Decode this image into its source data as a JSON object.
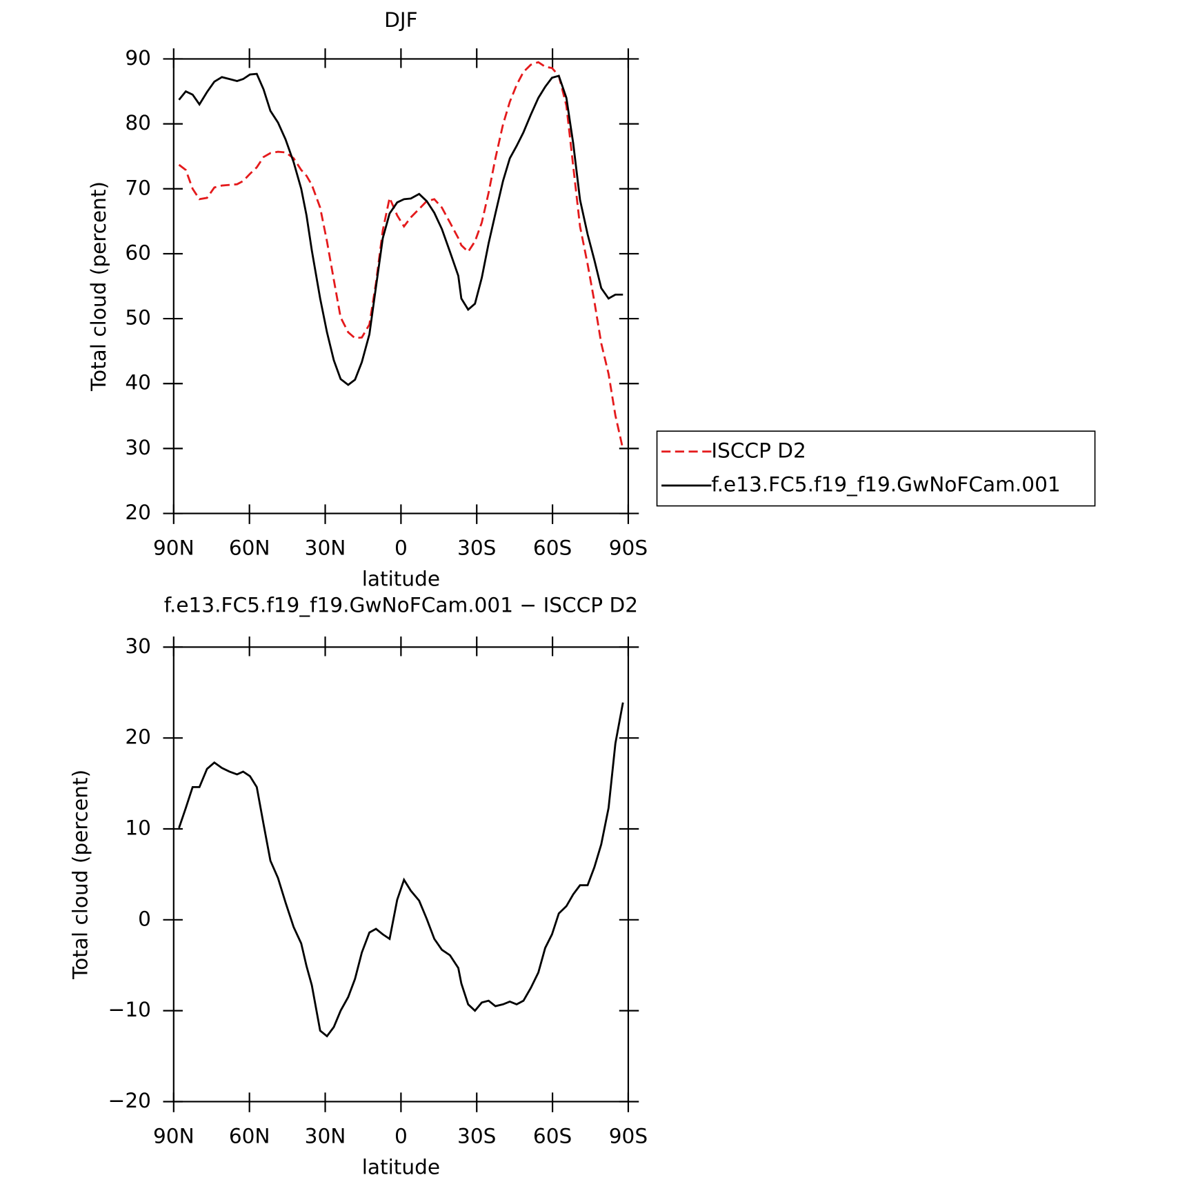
{
  "chart_data": [
    {
      "type": "line",
      "title": "DJF",
      "xlabel": "latitude",
      "ylabel": "Total cloud (percent)",
      "x": [
        87.9,
        85.2,
        82.5,
        79.8,
        76.8,
        73.9,
        70.9,
        67.9,
        64.9,
        62.5,
        59.8,
        57.1,
        54.4,
        51.7,
        48.7,
        45.7,
        42.5,
        39.5,
        37.4,
        35.3,
        32.0,
        29.3,
        26.6,
        23.9,
        20.9,
        18.2,
        15.5,
        12.5,
        9.9,
        7.2,
        4.5,
        1.5,
        -1.2,
        -3.9,
        -7.2,
        -10.2,
        -13.2,
        -16.2,
        -19.4,
        -22.7,
        -23.9,
        -26.6,
        -29.3,
        -32.0,
        -34.7,
        -37.4,
        -40.4,
        -43.1,
        -45.8,
        -48.5,
        -51.4,
        -54.4,
        -57.1,
        -59.8,
        -62.5,
        -65.5,
        -68.2,
        -70.9,
        -73.9,
        -76.6,
        -79.3,
        -82.2,
        -84.9,
        -87.9
      ],
      "series": [
        {
          "name": "ISCCP D2",
          "color": "#e41a1c",
          "line_style": "dashed",
          "values": [
            73.7,
            72.9,
            70.0,
            68.4,
            68.6,
            70.2,
            70.5,
            70.6,
            70.7,
            71.2,
            72.3,
            73.3,
            74.9,
            75.5,
            75.7,
            75.6,
            74.7,
            72.9,
            72.0,
            70.6,
            67.1,
            61.9,
            56.0,
            50.2,
            47.9,
            47.0,
            47.1,
            49.1,
            55.5,
            63.6,
            68.6,
            65.9,
            64.2,
            65.6,
            66.9,
            68.1,
            68.4,
            67.1,
            64.8,
            62.4,
            61.3,
            60.3,
            61.9,
            64.8,
            69.4,
            74.7,
            79.9,
            83.4,
            86.0,
            88.0,
            89.1,
            89.5,
            88.8,
            88.6,
            87.4,
            82.8,
            73.5,
            64.2,
            58.4,
            52.6,
            46.2,
            41.5,
            35.1,
            29.9
          ]
        },
        {
          "name": "f.e13.FC5.f19_f19.GwNoFCam.001",
          "color": "#000000",
          "line_style": "solid",
          "values": [
            83.7,
            85.0,
            84.5,
            83.0,
            84.9,
            86.5,
            87.2,
            86.9,
            86.6,
            86.9,
            87.6,
            87.7,
            85.3,
            82.0,
            80.2,
            77.6,
            74.1,
            70.0,
            65.9,
            60.5,
            53.1,
            47.9,
            43.6,
            40.7,
            39.8,
            40.6,
            43.3,
            47.6,
            54.9,
            62.4,
            66.2,
            67.9,
            68.4,
            68.5,
            69.2,
            68.1,
            66.3,
            63.8,
            60.3,
            56.6,
            53.1,
            51.4,
            52.3,
            56.3,
            61.6,
            66.2,
            71.2,
            74.7,
            76.6,
            78.7,
            81.4,
            84.0,
            85.7,
            87.1,
            87.4,
            84.0,
            77.0,
            68.3,
            63.0,
            59.0,
            54.7,
            53.1,
            53.7,
            53.7
          ]
        }
      ],
      "xlim": [
        90,
        -90
      ],
      "xticks": [
        {
          "value": 90,
          "label": "90N"
        },
        {
          "value": 60,
          "label": "60N"
        },
        {
          "value": 30,
          "label": "30N"
        },
        0,
        {
          "value": -30,
          "label": "30S"
        },
        {
          "value": -60,
          "label": "60S"
        },
        {
          "value": -90,
          "label": "90S"
        }
      ],
      "ylim": [
        20,
        90
      ],
      "yticks": [
        20,
        30,
        40,
        50,
        60,
        70,
        80,
        90
      ]
    },
    {
      "type": "line",
      "title": "f.e13.FC5.f19_f19.GwNoFCam.001 − ISCCP D2",
      "xlabel": "latitude",
      "ylabel": "Total cloud (percent)",
      "x": [
        87.9,
        85.2,
        82.5,
        79.8,
        76.8,
        73.9,
        70.9,
        67.9,
        64.9,
        62.5,
        59.8,
        57.1,
        54.4,
        51.7,
        48.7,
        45.7,
        42.5,
        39.5,
        37.4,
        35.3,
        32.0,
        29.3,
        26.6,
        23.9,
        20.9,
        18.2,
        15.5,
        12.5,
        9.9,
        7.2,
        4.5,
        1.5,
        -1.2,
        -3.9,
        -7.2,
        -10.2,
        -13.2,
        -16.2,
        -19.4,
        -22.7,
        -23.9,
        -26.6,
        -29.3,
        -32.0,
        -34.7,
        -37.4,
        -40.4,
        -43.1,
        -45.8,
        -48.5,
        -51.4,
        -54.4,
        -57.1,
        -59.8,
        -62.5,
        -65.5,
        -68.2,
        -70.9,
        -73.9,
        -76.6,
        -79.3,
        -82.2,
        -84.9,
        -87.9
      ],
      "series": [
        {
          "color": "#000000",
          "line_style": "solid",
          "values": [
            10.1,
            12.3,
            14.6,
            14.6,
            16.6,
            17.3,
            16.7,
            16.3,
            16.0,
            16.3,
            15.8,
            14.6,
            10.5,
            6.5,
            4.6,
            1.9,
            -0.8,
            -2.6,
            -5.1,
            -7.2,
            -12.2,
            -12.8,
            -11.8,
            -10.0,
            -8.5,
            -6.5,
            -3.6,
            -1.4,
            -1.0,
            -1.6,
            -2.1,
            2.2,
            4.4,
            3.2,
            2.1,
            0.1,
            -2.1,
            -3.3,
            -3.9,
            -5.3,
            -7.0,
            -9.3,
            -10.0,
            -9.1,
            -8.9,
            -9.5,
            -9.3,
            -9.0,
            -9.3,
            -8.9,
            -7.5,
            -5.8,
            -3.1,
            -1.6,
            0.7,
            1.5,
            2.8,
            3.8,
            3.8,
            5.8,
            8.3,
            12.3,
            19.4,
            23.9
          ]
        }
      ],
      "xlim": [
        90,
        -90
      ],
      "xticks": [
        {
          "value": 90,
          "label": "90N"
        },
        {
          "value": 60,
          "label": "60N"
        },
        {
          "value": 30,
          "label": "30N"
        },
        0,
        {
          "value": -30,
          "label": "30S"
        },
        {
          "value": -60,
          "label": "60S"
        },
        {
          "value": -90,
          "label": "90S"
        }
      ],
      "ylim": [
        -20,
        30
      ],
      "yticks": [
        {
          "value": -20,
          "label": "−20"
        },
        {
          "value": -10,
          "label": "−10"
        },
        0,
        10,
        20,
        30
      ]
    }
  ]
}
